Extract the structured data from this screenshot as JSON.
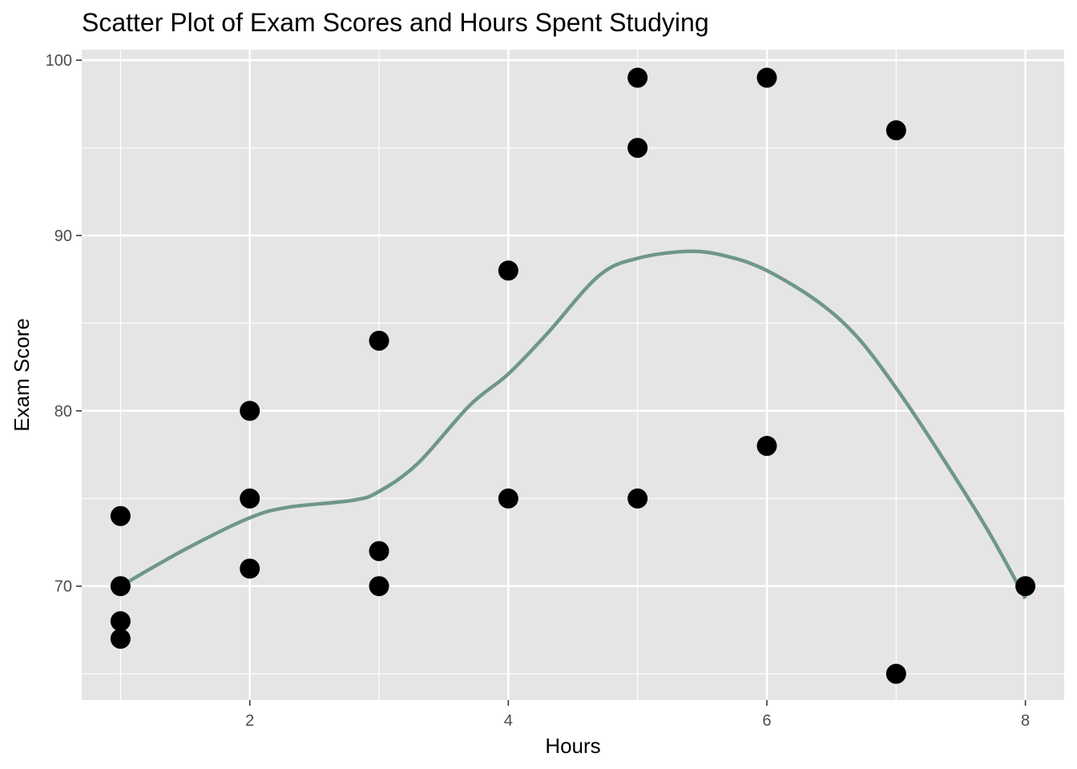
{
  "chart_data": {
    "type": "scatter",
    "title": "Scatter Plot of Exam Scores and Hours Spent Studying",
    "xlabel": "Hours",
    "ylabel": "Exam Score",
    "xlim": [
      0.7,
      8.3
    ],
    "ylim": [
      63.5,
      100.6
    ],
    "x_major_ticks": [
      2,
      4,
      6,
      8
    ],
    "x_minor_ticks": [
      1,
      3,
      5,
      7
    ],
    "y_major_ticks": [
      70,
      80,
      90,
      100
    ],
    "y_minor_ticks": [
      65,
      75,
      85,
      95
    ],
    "grid": true,
    "legend": "none",
    "colors": {
      "panel": "#e5e5e5",
      "grid": "#ffffff",
      "points": "#000000",
      "smooth": "#6f9787"
    },
    "series": [
      {
        "points": [
          {
            "x": 1,
            "y": 74
          },
          {
            "x": 1,
            "y": 70
          },
          {
            "x": 1,
            "y": 68
          },
          {
            "x": 1,
            "y": 67
          },
          {
            "x": 2,
            "y": 80
          },
          {
            "x": 2,
            "y": 75
          },
          {
            "x": 2,
            "y": 71
          },
          {
            "x": 3,
            "y": 84
          },
          {
            "x": 3,
            "y": 72
          },
          {
            "x": 3,
            "y": 70
          },
          {
            "x": 4,
            "y": 88
          },
          {
            "x": 4,
            "y": 75
          },
          {
            "x": 5,
            "y": 99
          },
          {
            "x": 5,
            "y": 95
          },
          {
            "x": 5,
            "y": 75
          },
          {
            "x": 6,
            "y": 99
          },
          {
            "x": 6,
            "y": 78
          },
          {
            "x": 7,
            "y": 96
          },
          {
            "x": 7,
            "y": 65
          },
          {
            "x": 8,
            "y": 70
          }
        ]
      }
    ],
    "smooth_line": [
      {
        "x": 1.0,
        "y": 70.0
      },
      {
        "x": 1.5,
        "y": 72.1
      },
      {
        "x": 2.0,
        "y": 73.9
      },
      {
        "x": 2.3,
        "y": 74.5
      },
      {
        "x": 2.8,
        "y": 74.9
      },
      {
        "x": 3.0,
        "y": 75.4
      },
      {
        "x": 3.3,
        "y": 77.0
      },
      {
        "x": 3.7,
        "y": 80.3
      },
      {
        "x": 4.0,
        "y": 82.1
      },
      {
        "x": 4.3,
        "y": 84.4
      },
      {
        "x": 4.7,
        "y": 87.7
      },
      {
        "x": 5.0,
        "y": 88.7
      },
      {
        "x": 5.4,
        "y": 89.1
      },
      {
        "x": 5.7,
        "y": 88.8
      },
      {
        "x": 6.0,
        "y": 88.0
      },
      {
        "x": 6.4,
        "y": 86.2
      },
      {
        "x": 6.7,
        "y": 84.2
      },
      {
        "x": 7.0,
        "y": 81.3
      },
      {
        "x": 7.3,
        "y": 78.0
      },
      {
        "x": 7.7,
        "y": 73.3
      },
      {
        "x": 8.0,
        "y": 69.3
      }
    ]
  }
}
